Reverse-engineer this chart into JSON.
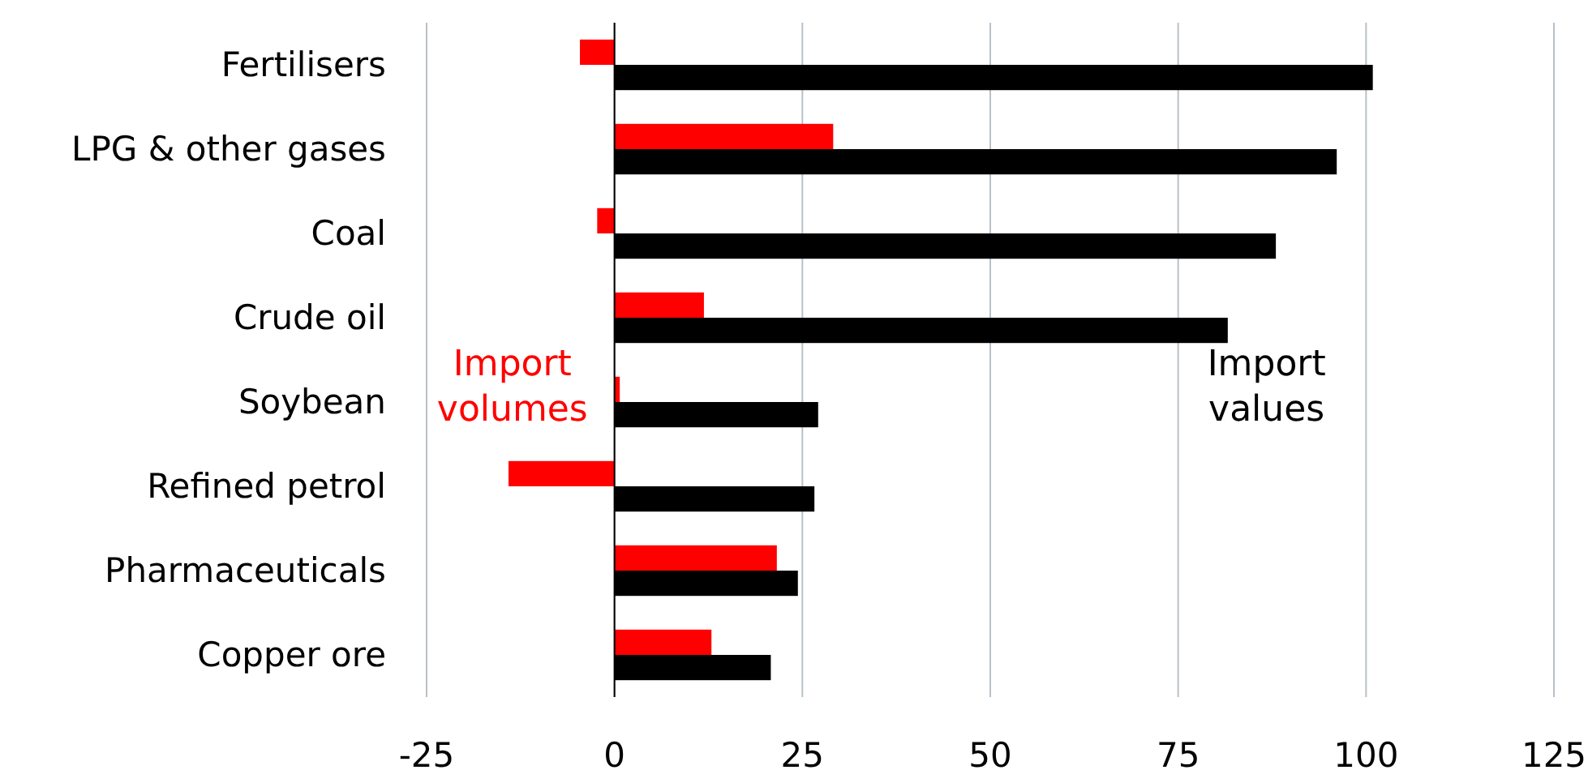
{
  "chart_data": {
    "type": "bar",
    "orientation": "horizontal",
    "categories": [
      "Fertilisers",
      "LPG & other gases",
      "Coal",
      "Crude oil",
      "Soybean",
      "Refined petrol",
      "Pharmaceuticals",
      "Copper ore"
    ],
    "series": [
      {
        "name": "Import volumes",
        "color": "#ff0000",
        "values": [
          -4.6,
          29.1,
          -2.3,
          11.9,
          0.7,
          -14.1,
          21.6,
          12.9
        ]
      },
      {
        "name": "Import values",
        "color": "#000000",
        "values": [
          100.9,
          96.1,
          88,
          81.6,
          27.1,
          26.6,
          24.4,
          20.8
        ]
      }
    ],
    "xlim": [
      -25,
      125
    ],
    "xticks": [
      -25,
      0,
      25,
      50,
      75,
      100,
      125
    ],
    "grid": "x"
  }
}
